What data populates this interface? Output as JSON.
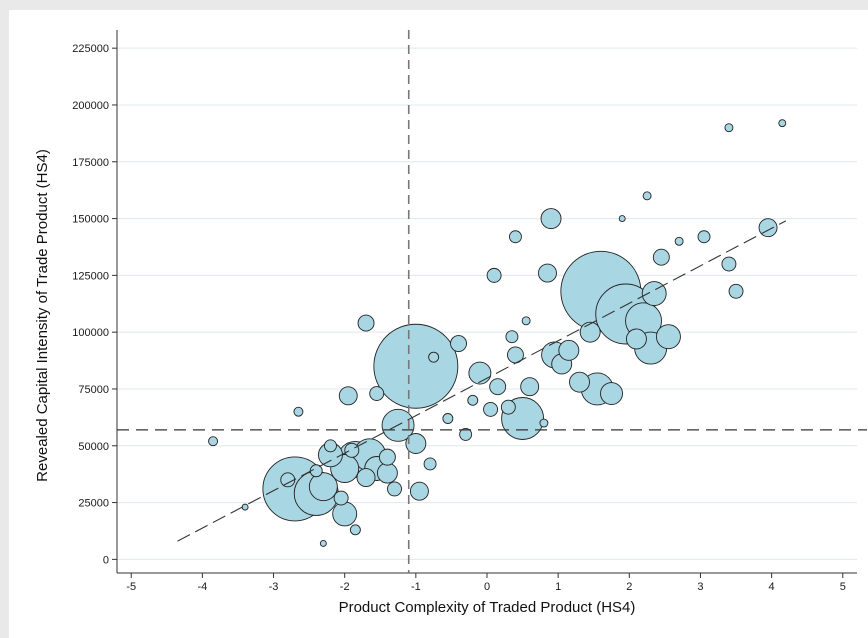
{
  "chart_data": {
    "type": "scatter",
    "title": "",
    "xlabel": "Product Complexity of Traded Product (HS4)",
    "ylabel": "Revealed Capital Intensity of Trade Product (HS4)",
    "xlim": [
      -5.2,
      5.2
    ],
    "ylim": [
      -6000,
      233000
    ],
    "xticks": [
      -5,
      -4,
      -3,
      -2,
      -1,
      0,
      1,
      2,
      3,
      4,
      5
    ],
    "yticks": [
      0,
      25000,
      50000,
      75000,
      100000,
      125000,
      150000,
      175000,
      200000,
      225000
    ],
    "xtick_labels": [
      "-5",
      "-4",
      "-3",
      "-2",
      "-1",
      "0",
      "1",
      "2",
      "3",
      "4",
      "5"
    ],
    "ytick_labels": [
      "0",
      "25000",
      "50000",
      "75000",
      "100000",
      "125000",
      "150000",
      "175000",
      "200000",
      "225000"
    ],
    "grid": "horizontal",
    "legend": "none",
    "marker_color": "#a9d6e3",
    "marker_edge": "#222222",
    "reference_lines": {
      "vertical_x": -1.1,
      "horizontal_y": 57000
    },
    "fit_line": {
      "x": [
        -4.35,
        4.2
      ],
      "y": [
        8000,
        149000
      ]
    },
    "points": [
      {
        "x": -2.7,
        "y": 31000,
        "size": 32
      },
      {
        "x": -2.4,
        "y": 29000,
        "size": 22
      },
      {
        "x": -2.3,
        "y": 32000,
        "size": 14
      },
      {
        "x": -2.0,
        "y": 40000,
        "size": 14
      },
      {
        "x": -1.85,
        "y": 44000,
        "size": 18
      },
      {
        "x": -1.65,
        "y": 46000,
        "size": 16
      },
      {
        "x": -1.55,
        "y": 40000,
        "size": 12
      },
      {
        "x": -1.4,
        "y": 38000,
        "size": 10
      },
      {
        "x": -1.7,
        "y": 36000,
        "size": 9
      },
      {
        "x": -2.2,
        "y": 46000,
        "size": 12
      },
      {
        "x": -2.0,
        "y": 20000,
        "size": 12
      },
      {
        "x": -2.05,
        "y": 27000,
        "size": 7
      },
      {
        "x": -2.4,
        "y": 39000,
        "size": 6
      },
      {
        "x": -2.8,
        "y": 35000,
        "size": 7
      },
      {
        "x": -2.2,
        "y": 50000,
        "size": 6
      },
      {
        "x": -1.9,
        "y": 48000,
        "size": 7
      },
      {
        "x": -1.4,
        "y": 45000,
        "size": 8
      },
      {
        "x": -1.25,
        "y": 59000,
        "size": 16
      },
      {
        "x": -1.0,
        "y": 51000,
        "size": 10
      },
      {
        "x": -1.0,
        "y": 85000,
        "size": 42
      },
      {
        "x": -1.7,
        "y": 104000,
        "size": 8
      },
      {
        "x": -1.95,
        "y": 72000,
        "size": 9
      },
      {
        "x": -1.55,
        "y": 73000,
        "size": 7
      },
      {
        "x": -0.75,
        "y": 89000,
        "size": 5
      },
      {
        "x": -0.4,
        "y": 95000,
        "size": 8
      },
      {
        "x": -0.1,
        "y": 82000,
        "size": 11
      },
      {
        "x": 0.15,
        "y": 76000,
        "size": 8
      },
      {
        "x": 0.3,
        "y": 67000,
        "size": 7
      },
      {
        "x": 0.5,
        "y": 62000,
        "size": 21
      },
      {
        "x": 0.6,
        "y": 76000,
        "size": 9
      },
      {
        "x": 0.4,
        "y": 90000,
        "size": 8
      },
      {
        "x": 0.35,
        "y": 98000,
        "size": 6
      },
      {
        "x": 0.95,
        "y": 90000,
        "size": 13
      },
      {
        "x": 1.05,
        "y": 86000,
        "size": 10
      },
      {
        "x": 1.3,
        "y": 78000,
        "size": 10
      },
      {
        "x": 1.55,
        "y": 75000,
        "size": 16
      },
      {
        "x": 1.75,
        "y": 73000,
        "size": 11
      },
      {
        "x": 1.6,
        "y": 118000,
        "size": 40
      },
      {
        "x": 1.95,
        "y": 108000,
        "size": 30
      },
      {
        "x": 2.2,
        "y": 105000,
        "size": 18
      },
      {
        "x": 2.3,
        "y": 93000,
        "size": 16
      },
      {
        "x": 2.55,
        "y": 98000,
        "size": 12
      },
      {
        "x": 2.35,
        "y": 117000,
        "size": 12
      },
      {
        "x": 2.1,
        "y": 97000,
        "size": 10
      },
      {
        "x": 1.45,
        "y": 100000,
        "size": 10
      },
      {
        "x": 0.85,
        "y": 126000,
        "size": 9
      },
      {
        "x": 0.9,
        "y": 150000,
        "size": 10
      },
      {
        "x": 0.1,
        "y": 125000,
        "size": 7
      },
      {
        "x": 0.4,
        "y": 142000,
        "size": 6
      },
      {
        "x": 2.45,
        "y": 133000,
        "size": 8
      },
      {
        "x": 3.4,
        "y": 130000,
        "size": 7
      },
      {
        "x": 3.5,
        "y": 118000,
        "size": 7
      },
      {
        "x": 3.95,
        "y": 146000,
        "size": 9
      },
      {
        "x": 3.05,
        "y": 142000,
        "size": 6
      },
      {
        "x": 3.4,
        "y": 190000,
        "size": 4
      },
      {
        "x": 4.15,
        "y": 192000,
        "size": 3.5
      },
      {
        "x": -3.85,
        "y": 52000,
        "size": 4.5
      },
      {
        "x": -2.65,
        "y": 65000,
        "size": 4.5
      },
      {
        "x": -1.3,
        "y": 31000,
        "size": 7
      },
      {
        "x": -0.95,
        "y": 30000,
        "size": 9
      },
      {
        "x": -0.8,
        "y": 42000,
        "size": 6
      },
      {
        "x": -0.3,
        "y": 55000,
        "size": 6
      },
      {
        "x": 0.05,
        "y": 66000,
        "size": 7
      },
      {
        "x": -0.55,
        "y": 62000,
        "size": 5
      },
      {
        "x": 1.15,
        "y": 92000,
        "size": 10
      },
      {
        "x": 2.7,
        "y": 140000,
        "size": 4
      },
      {
        "x": -3.4,
        "y": 23000,
        "size": 3
      },
      {
        "x": -1.85,
        "y": 13000,
        "size": 5
      },
      {
        "x": -2.3,
        "y": 7000,
        "size": 3
      },
      {
        "x": 0.8,
        "y": 60000,
        "size": 4
      },
      {
        "x": -0.2,
        "y": 70000,
        "size": 5
      },
      {
        "x": 0.55,
        "y": 105000,
        "size": 4
      },
      {
        "x": 1.9,
        "y": 150000,
        "size": 3
      },
      {
        "x": 2.25,
        "y": 160000,
        "size": 4
      }
    ]
  }
}
